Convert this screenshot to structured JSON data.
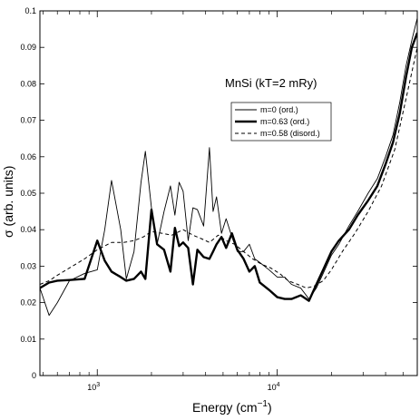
{
  "chart_data": {
    "type": "line",
    "annotation": "MnSi (kT=2 mRy)",
    "xlabel": "Energy (cm",
    "xlabel_sup": "−1",
    "xlabel_close": ")",
    "ylabel": "σ (arb. units)",
    "xscale": "log",
    "xlim": [
      480,
      60000
    ],
    "ylim": [
      0,
      0.1
    ],
    "grid": false,
    "legend_position": "upper-right inside plot",
    "yticks": [
      0,
      0.01,
      0.02,
      0.03,
      0.04,
      0.05,
      0.06,
      0.07,
      0.08,
      0.09,
      0.1
    ],
    "ytick_labels": [
      "0",
      "0.01",
      "0.02",
      "0.03",
      "0.04",
      "0.05",
      "0.06",
      "0.07",
      "0.08",
      "0.09",
      "0.1"
    ],
    "xticks_major": [
      1000,
      10000
    ],
    "xtick_labels": [
      {
        "base": "10",
        "exp": "3"
      },
      {
        "base": "10",
        "exp": "4"
      }
    ],
    "series": [
      {
        "name": "m=0 (ord.)",
        "style": "thin-solid",
        "x": [
          480,
          540,
          600,
          700,
          850,
          1000,
          1100,
          1200,
          1350,
          1450,
          1600,
          1750,
          1850,
          2000,
          2150,
          2350,
          2550,
          2700,
          2850,
          3000,
          3200,
          3400,
          3600,
          3900,
          4200,
          4400,
          4600,
          4900,
          5200,
          5600,
          6000,
          6500,
          7000,
          7500,
          8000,
          9000,
          10000,
          11000,
          12000,
          13500,
          15000,
          16500,
          18000,
          20000,
          22000,
          25000,
          28000,
          32000,
          36000,
          40000,
          44000,
          48000,
          52000,
          56000,
          60000
        ],
        "y": [
          0.024,
          0.0165,
          0.02,
          0.026,
          0.028,
          0.029,
          0.04,
          0.0535,
          0.04,
          0.0265,
          0.034,
          0.053,
          0.0615,
          0.046,
          0.036,
          0.045,
          0.052,
          0.044,
          0.053,
          0.0505,
          0.037,
          0.046,
          0.0455,
          0.041,
          0.0625,
          0.045,
          0.049,
          0.039,
          0.043,
          0.038,
          0.034,
          0.034,
          0.036,
          0.032,
          0.031,
          0.029,
          0.027,
          0.027,
          0.025,
          0.024,
          0.021,
          0.024,
          0.028,
          0.033,
          0.036,
          0.041,
          0.045,
          0.05,
          0.054,
          0.06,
          0.066,
          0.075,
          0.085,
          0.092,
          0.098
        ]
      },
      {
        "name": "m=0.63 (ord.)",
        "style": "thick-solid",
        "x": [
          480,
          540,
          600,
          700,
          850,
          1000,
          1100,
          1200,
          1350,
          1450,
          1600,
          1750,
          1850,
          2000,
          2150,
          2350,
          2550,
          2700,
          2850,
          3000,
          3200,
          3400,
          3600,
          3900,
          4200,
          4400,
          4600,
          4900,
          5200,
          5600,
          6000,
          6500,
          7000,
          7500,
          8000,
          9000,
          10000,
          11000,
          12000,
          13500,
          15000,
          16500,
          18000,
          20000,
          22000,
          25000,
          28000,
          32000,
          36000,
          40000,
          44000,
          48000,
          52000,
          56000,
          60000
        ],
        "y": [
          0.024,
          0.0255,
          0.026,
          0.0262,
          0.0265,
          0.037,
          0.0315,
          0.0285,
          0.027,
          0.026,
          0.0265,
          0.0285,
          0.0265,
          0.0455,
          0.036,
          0.0345,
          0.0285,
          0.0405,
          0.0355,
          0.0365,
          0.035,
          0.025,
          0.0345,
          0.0325,
          0.032,
          0.034,
          0.036,
          0.038,
          0.035,
          0.039,
          0.0345,
          0.032,
          0.0285,
          0.03,
          0.0255,
          0.0235,
          0.0215,
          0.021,
          0.021,
          0.022,
          0.0205,
          0.025,
          0.029,
          0.034,
          0.037,
          0.04,
          0.044,
          0.048,
          0.052,
          0.058,
          0.064,
          0.072,
          0.082,
          0.09,
          0.094
        ]
      },
      {
        "name": "m=0.58 (disord.)",
        "style": "dashed",
        "x": [
          480,
          540,
          600,
          700,
          850,
          1000,
          1200,
          1400,
          1600,
          1800,
          2000,
          2300,
          2600,
          3000,
          3400,
          3800,
          4200,
          4700,
          5200,
          5800,
          6500,
          7300,
          8200,
          9200,
          10300,
          11500,
          13000,
          14500,
          16000,
          18000,
          20000,
          23000,
          27000,
          32000,
          38000,
          45000,
          52000,
          60000
        ],
        "y": [
          0.025,
          0.026,
          0.0275,
          0.0295,
          0.032,
          0.0345,
          0.0365,
          0.0365,
          0.037,
          0.038,
          0.0395,
          0.039,
          0.0385,
          0.04,
          0.0385,
          0.0375,
          0.0365,
          0.0385,
          0.037,
          0.036,
          0.034,
          0.032,
          0.0305,
          0.0295,
          0.028,
          0.026,
          0.025,
          0.024,
          0.0245,
          0.026,
          0.029,
          0.034,
          0.039,
          0.045,
          0.052,
          0.062,
          0.076,
          0.09
        ]
      }
    ]
  }
}
